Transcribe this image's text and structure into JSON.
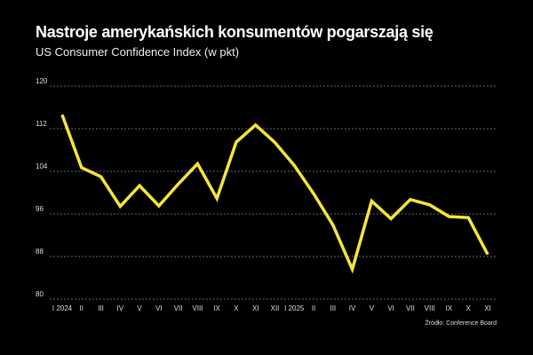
{
  "chart_data": {
    "type": "line",
    "title": "Nastroje amerykańskich konsumentów pogarszają się",
    "subtitle": "US Consumer Confidence Index (w pkt)",
    "source": "Źródło: Conference Board",
    "xlabel": "",
    "ylabel": "",
    "ylim": [
      80,
      120
    ],
    "yticks": [
      80,
      88,
      96,
      104,
      112,
      120
    ],
    "grid": true,
    "categories": [
      "I 2024",
      "II",
      "III",
      "IV",
      "V",
      "VI",
      "VII",
      "VIII",
      "IX",
      "X",
      "XI",
      "XII",
      "I 2025",
      "II",
      "III",
      "IV",
      "V",
      "VI",
      "VII",
      "VIII",
      "IX",
      "X",
      "XI"
    ],
    "series": [
      {
        "name": "US Consumer Confidence Index",
        "color": "#f5e53a",
        "values": [
          114.6,
          104.7,
          103.0,
          97.4,
          101.3,
          97.5,
          101.6,
          105.4,
          98.9,
          109.5,
          112.7,
          109.4,
          105.1,
          99.8,
          93.9,
          85.6,
          98.4,
          95.1,
          98.7,
          97.7,
          95.5,
          95.3,
          88.4
        ]
      }
    ]
  }
}
